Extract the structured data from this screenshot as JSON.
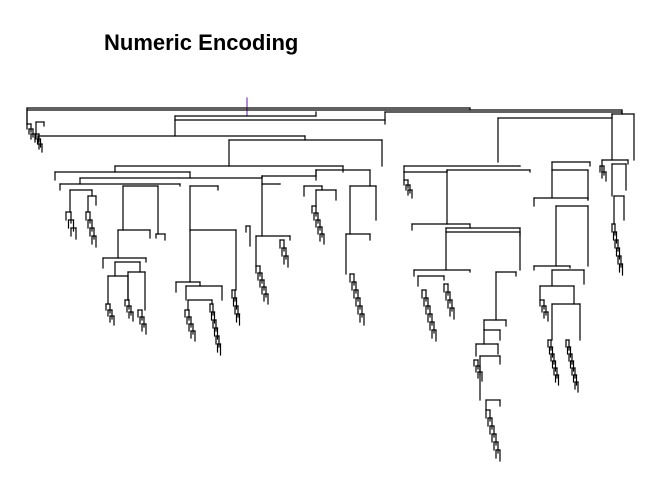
{
  "title": "Numeric Encoding",
  "diagram": {
    "type": "dendrogram",
    "orientation": "top-down",
    "axes_shown": false,
    "leaf_labels_shown": false,
    "colors": {
      "line": "#000000",
      "root_stem": "#7b3fbf",
      "background": "#ffffff"
    }
  }
}
